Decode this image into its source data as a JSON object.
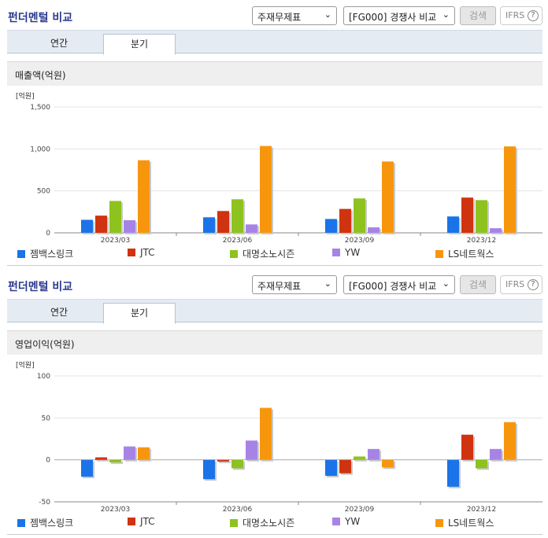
{
  "panels": [
    {
      "title": "펀더멘털 비교",
      "statement_select": "주재무제표",
      "peer_select": "[FG000] 경쟁사 비교",
      "search_label": "검색",
      "ifrs_label": "IFRS",
      "help_label": "?",
      "tabs": [
        "연간",
        "분기"
      ],
      "active_tab": "분기",
      "section_title": "매출액(억원)"
    },
    {
      "title": "펀더멘털 비교",
      "statement_select": "주재무제표",
      "peer_select": "[FG000] 경쟁사 비교",
      "search_label": "검색",
      "ifrs_label": "IFRS",
      "help_label": "?",
      "tabs": [
        "연간",
        "분기"
      ],
      "active_tab": "분기",
      "section_title": "영업이익(억원)"
    }
  ],
  "chart_data": [
    {
      "type": "bar",
      "unit_label": "[억원]",
      "categories": [
        "2023/03",
        "2023/06",
        "2023/09",
        "2023/12"
      ],
      "ylim": [
        0,
        1500
      ],
      "yticks": [
        0,
        500,
        1000,
        1500
      ],
      "ytick_labels": [
        "0",
        "500",
        "1,000",
        "1,500"
      ],
      "grid": true,
      "legend_position": "bottom",
      "series": [
        {
          "name": "젬백스링크",
          "color": "#1a73e8",
          "values": [
            155,
            185,
            165,
            195
          ]
        },
        {
          "name": "JTC",
          "color": "#d0330f",
          "values": [
            205,
            260,
            285,
            420
          ]
        },
        {
          "name": "대명소노시즌",
          "color": "#8ec21f",
          "values": [
            380,
            400,
            410,
            390
          ]
        },
        {
          "name": "YW",
          "color": "#a684e6",
          "values": [
            150,
            100,
            65,
            55
          ]
        },
        {
          "name": "LS네트웍스",
          "color": "#f7960d",
          "values": [
            865,
            1035,
            850,
            1030
          ]
        }
      ]
    },
    {
      "type": "bar",
      "unit_label": "[억원]",
      "categories": [
        "2023/03",
        "2023/06",
        "2023/09",
        "2023/12"
      ],
      "ylim": [
        -50,
        100
      ],
      "yticks": [
        -50,
        0,
        50,
        100
      ],
      "ytick_labels": [
        "-50",
        "0",
        "50",
        "100"
      ],
      "grid": true,
      "legend_position": "bottom",
      "series": [
        {
          "name": "젬백스링크",
          "color": "#1a73e8",
          "values": [
            -20,
            -23,
            -19,
            -32
          ]
        },
        {
          "name": "JTC",
          "color": "#d0330f",
          "values": [
            3,
            -2,
            -16,
            30
          ]
        },
        {
          "name": "대명소노시즌",
          "color": "#8ec21f",
          "values": [
            -3,
            -10,
            4,
            -10
          ]
        },
        {
          "name": "YW",
          "color": "#a684e6",
          "values": [
            16,
            23,
            13,
            13
          ]
        },
        {
          "name": "LS네트웍스",
          "color": "#f7960d",
          "values": [
            15,
            62,
            -9,
            45
          ]
        }
      ]
    }
  ]
}
